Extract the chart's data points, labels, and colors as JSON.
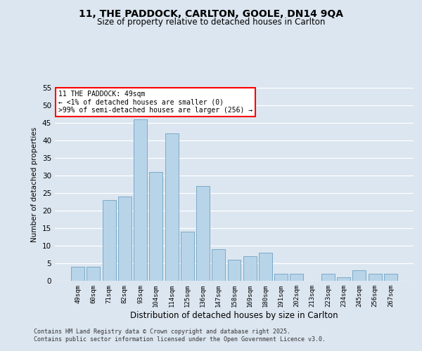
{
  "title_line1": "11, THE PADDOCK, CARLTON, GOOLE, DN14 9QA",
  "title_line2": "Size of property relative to detached houses in Carlton",
  "xlabel": "Distribution of detached houses by size in Carlton",
  "ylabel": "Number of detached properties",
  "categories": [
    "49sqm",
    "60sqm",
    "71sqm",
    "82sqm",
    "93sqm",
    "104sqm",
    "114sqm",
    "125sqm",
    "136sqm",
    "147sqm",
    "158sqm",
    "169sqm",
    "180sqm",
    "191sqm",
    "202sqm",
    "213sqm",
    "223sqm",
    "234sqm",
    "245sqm",
    "256sqm",
    "267sqm"
  ],
  "values": [
    4,
    4,
    23,
    24,
    46,
    31,
    42,
    14,
    27,
    9,
    6,
    7,
    8,
    2,
    2,
    0,
    2,
    1,
    3,
    2,
    2
  ],
  "bar_color": "#b8d4e8",
  "bar_edge_color": "#7aaac8",
  "annotation_line1": "11 THE PADDOCK: 49sqm",
  "annotation_line2": "← <1% of detached houses are smaller (0)",
  "annotation_line3": ">99% of semi-detached houses are larger (256) →",
  "ylim": [
    0,
    55
  ],
  "yticks": [
    0,
    5,
    10,
    15,
    20,
    25,
    30,
    35,
    40,
    45,
    50,
    55
  ],
  "bg_color": "#dce6f0",
  "grid_color": "#ffffff",
  "footer_line1": "Contains HM Land Registry data © Crown copyright and database right 2025.",
  "footer_line2": "Contains public sector information licensed under the Open Government Licence v3.0."
}
